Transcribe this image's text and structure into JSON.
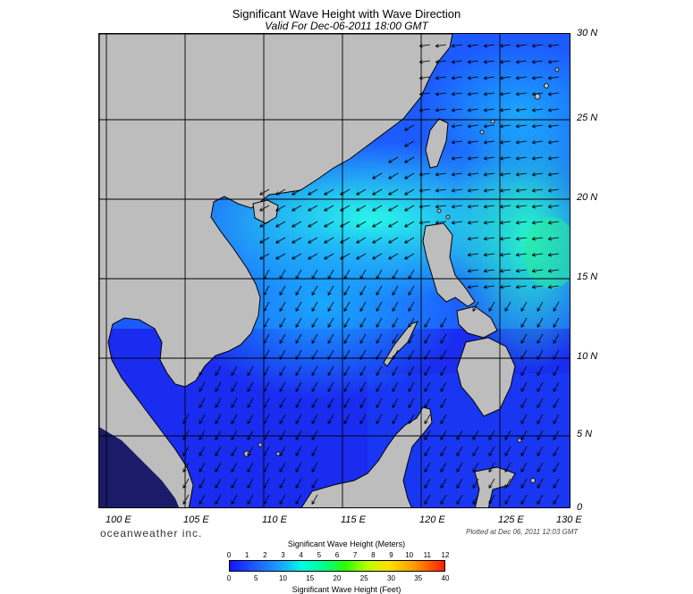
{
  "title": "Significant Wave Height with Wave Direction",
  "subtitle": "Valid For Dec-06-2011 18:00 GMT",
  "lat_labels": [
    "30 N",
    "25 N",
    "20 N",
    "15 N",
    "10 N",
    "5 N",
    "0"
  ],
  "lon_labels": [
    "100 E",
    "105 E",
    "110 E",
    "115 E",
    "120 E",
    "125 E",
    "130 E"
  ],
  "brand": "oceanweather inc.",
  "plotted": "Plotted at Dec 06, 2011 12:03 GMT",
  "colorbar": {
    "title_top": "Significant Wave Height (Meters)",
    "title_bottom": "Significant Wave Height (Feet)",
    "meters_ticks": [
      "0",
      "1",
      "2",
      "3",
      "4",
      "5",
      "6",
      "7",
      "8",
      "9",
      "10",
      "11",
      "12"
    ],
    "feet_ticks": [
      "0",
      "5",
      "10",
      "15",
      "20",
      "25",
      "30",
      "35",
      "40"
    ]
  },
  "colors": {
    "land": "#bdbdbd",
    "deep_blue": "#1a2cf0",
    "mid_blue": "#1a6bff",
    "cyan": "#19f0ea",
    "green": "#22e3a0"
  }
}
